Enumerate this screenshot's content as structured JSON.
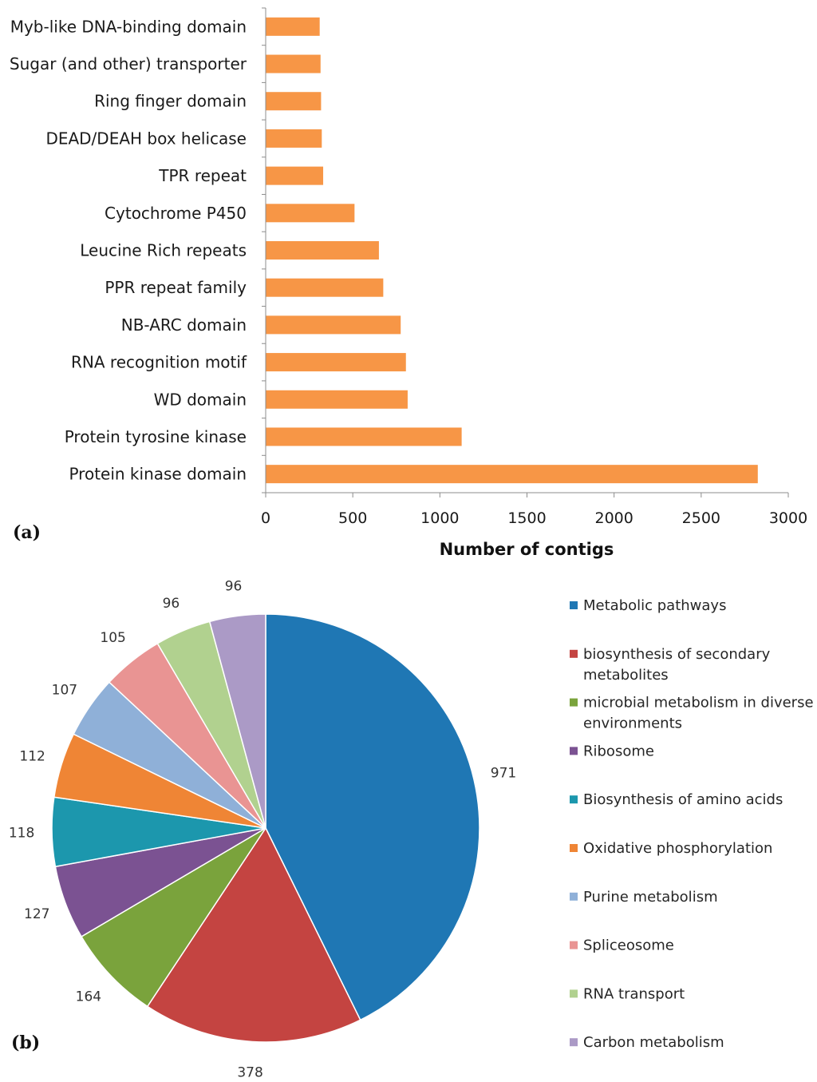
{
  "chart_data": [
    {
      "type": "bar",
      "orientation": "horizontal",
      "panel_label": "(a)",
      "categories": [
        "Myb-like DNA-binding domain",
        "Sugar (and other) transporter",
        "Ring finger domain",
        "DEAD/DEAH box helicase",
        "TPR repeat",
        "Cytochrome P450",
        "Leucine Rich repeats",
        "PPR repeat family",
        "NB-ARC domain",
        "RNA recognition motif",
        "WD domain",
        "Protein tyrosine kinase",
        "Protein kinase domain"
      ],
      "values": [
        310,
        315,
        318,
        322,
        330,
        510,
        650,
        675,
        775,
        805,
        815,
        1125,
        2825
      ],
      "xlabel": "Number of contigs",
      "ylabel": "",
      "xlim": [
        0,
        3000
      ],
      "xticks": [
        "0",
        "500",
        "1000",
        "1500",
        "2000",
        "2500",
        "3000"
      ],
      "bar_color": "#f79646",
      "grid": false
    },
    {
      "type": "pie",
      "panel_label": "(b)",
      "labels": [
        "Metabolic pathways",
        "biosynthesis of secondary metabolites",
        "microbial metabolism in diverse environments",
        "Ribosome",
        "Biosynthesis of amino acids",
        "Oxidative phosphorylation",
        "Purine metabolism",
        "Spliceosome",
        "RNA transport",
        "Carbon metabolism"
      ],
      "legend_lines": [
        [
          "Metabolic pathways"
        ],
        [
          "biosynthesis of secondary",
          "metabolites"
        ],
        [
          "microbial metabolism in diverse",
          "environments"
        ],
        [
          "Ribosome"
        ],
        [
          "Biosynthesis of amino acids"
        ],
        [
          "Oxidative phosphorylation"
        ],
        [
          "Purine metabolism"
        ],
        [
          "Spliceosome"
        ],
        [
          "RNA transport"
        ],
        [
          "Carbon metabolism"
        ]
      ],
      "values": [
        971,
        378,
        164,
        127,
        118,
        112,
        107,
        105,
        96,
        96
      ],
      "colors": [
        "#1f77b4",
        "#c44441",
        "#7aa33c",
        "#7b5292",
        "#1c97ad",
        "#ef8535",
        "#8fb0d8",
        "#e99493",
        "#b1d18f",
        "#ab9ac6"
      ],
      "legend_position": "right"
    }
  ]
}
